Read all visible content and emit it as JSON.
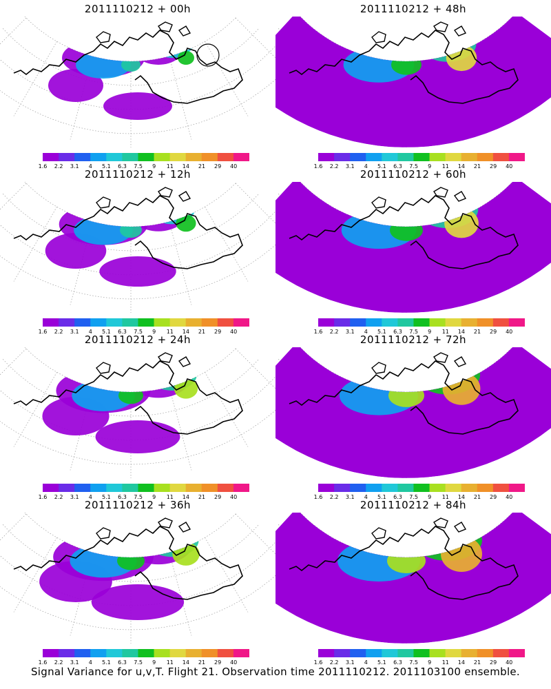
{
  "panels": [
    {
      "title": "2011110212 + 00h",
      "lead": 0
    },
    {
      "title": "2011110212 + 48h",
      "lead": 48
    },
    {
      "title": "2011110212 + 12h",
      "lead": 12
    },
    {
      "title": "2011110212 + 60h",
      "lead": 60
    },
    {
      "title": "2011110212 + 24h",
      "lead": 24
    },
    {
      "title": "2011110212 + 72h",
      "lead": 72
    },
    {
      "title": "2011110212 + 36h",
      "lead": 36
    },
    {
      "title": "2011110212 + 84h",
      "lead": 84
    }
  ],
  "colorbar": {
    "labels": [
      "1.6",
      "2.2",
      "3.1",
      "4",
      "5.1",
      "6.3",
      "7.5",
      "9",
      "11",
      "14",
      "21",
      "29",
      "40"
    ],
    "colors": [
      "#9a00d8",
      "#6a2ce8",
      "#2060f0",
      "#10a0f0",
      "#20c8d8",
      "#20c8a0",
      "#10c020",
      "#a8e020",
      "#e0d840",
      "#e8b030",
      "#f09028",
      "#f05040",
      "#f01888"
    ]
  },
  "caption": "Signal Variance for u,v,T. Flight 21. Observation time 2011110212. 2011103100 ensemble."
}
